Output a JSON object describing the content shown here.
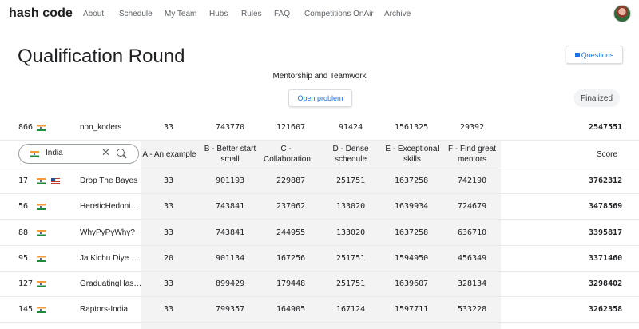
{
  "app": {
    "logo": "hash code"
  },
  "nav": {
    "items": [
      "About",
      "Schedule",
      "My Team",
      "Hubs",
      "Rules",
      "FAQ",
      "Competitions OnAir",
      "Archive"
    ]
  },
  "page": {
    "title": "Qualification Round",
    "questions_label": "Questions",
    "subtitle": "Mentorship and Teamwork",
    "open_problem_label": "Open problem",
    "status": "Finalized"
  },
  "own_team": {
    "rank": "866",
    "name": "non_koders",
    "scores": [
      "33",
      "743770",
      "121607",
      "91424",
      "1561325",
      "29392"
    ],
    "total": "2547551"
  },
  "filter": {
    "country": "India"
  },
  "columns": [
    "A - An example",
    "B - Better start small",
    "C - Collaboration",
    "D - Dense schedule",
    "E - Exceptional skills",
    "F - Find great mentors"
  ],
  "score_header": "Score",
  "rows": [
    {
      "rank": "17",
      "flags": [
        "in",
        "us"
      ],
      "name": "Drop The Bayes",
      "scores": [
        "33",
        "901193",
        "229887",
        "251751",
        "1637258",
        "742190"
      ],
      "total": "3762312"
    },
    {
      "rank": "56",
      "flags": [
        "in"
      ],
      "name": "HereticHedoni…",
      "scores": [
        "33",
        "743841",
        "237062",
        "133020",
        "1639934",
        "724679"
      ],
      "total": "3478569"
    },
    {
      "rank": "88",
      "flags": [
        "in"
      ],
      "name": "WhyPyPyWhy?",
      "scores": [
        "33",
        "743841",
        "244955",
        "133020",
        "1637258",
        "636710"
      ],
      "total": "3395817"
    },
    {
      "rank": "95",
      "flags": [
        "in"
      ],
      "name": "Ja Kichu Diye …",
      "scores": [
        "20",
        "901134",
        "167256",
        "251751",
        "1594950",
        "456349"
      ],
      "total": "3371460"
    },
    {
      "rank": "127",
      "flags": [
        "in"
      ],
      "name": "GraduatingHas…",
      "scores": [
        "33",
        "899429",
        "179448",
        "251751",
        "1639607",
        "328134"
      ],
      "total": "3298402"
    },
    {
      "rank": "145",
      "flags": [
        "in"
      ],
      "name": "Raptors-India",
      "scores": [
        "33",
        "799357",
        "164905",
        "167124",
        "1597711",
        "533228"
      ],
      "total": "3262358"
    }
  ]
}
